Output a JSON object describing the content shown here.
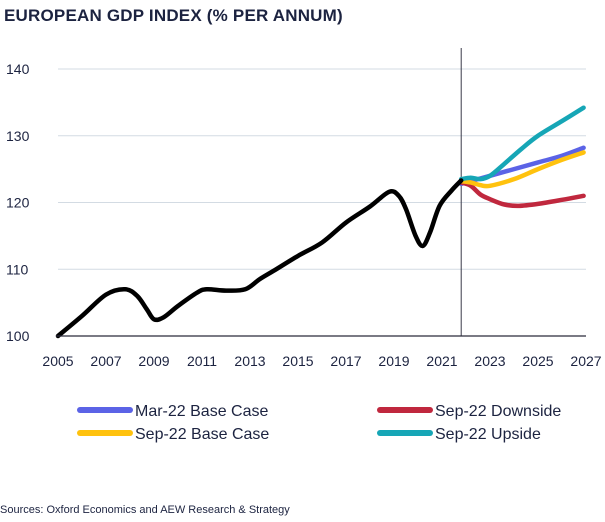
{
  "chart_data": {
    "type": "line",
    "title": "EUROPEAN GDP INDEX (% PER ANNUM)",
    "xlabel": "",
    "ylabel": "",
    "xlim": [
      2005,
      2027
    ],
    "ylim": [
      100,
      140
    ],
    "x_ticks": [
      "2005",
      "2007",
      "2009",
      "2011",
      "2013",
      "2015",
      "2017",
      "2019",
      "2021",
      "2023",
      "2025",
      "2027"
    ],
    "y_ticks": [
      "100",
      "110",
      "120",
      "130",
      "140"
    ],
    "grid": "horizontal",
    "forecast_divider_x": 2021.8,
    "legend_placement": "bottom",
    "history": {
      "name": "",
      "color": "#000000",
      "points": [
        [
          2005,
          100
        ],
        [
          2006,
          103
        ],
        [
          2007,
          106.2
        ],
        [
          2007.8,
          107
        ],
        [
          2008.3,
          106
        ],
        [
          2008.7,
          104
        ],
        [
          2009,
          102.5
        ],
        [
          2009.4,
          102.8
        ],
        [
          2010,
          104.5
        ],
        [
          2010.8,
          106.5
        ],
        [
          2011.2,
          107
        ],
        [
          2012,
          106.8
        ],
        [
          2012.8,
          107
        ],
        [
          2013.4,
          108.5
        ],
        [
          2014,
          109.8
        ],
        [
          2015,
          112
        ],
        [
          2016,
          114
        ],
        [
          2017,
          117
        ],
        [
          2018,
          119.4
        ],
        [
          2018.8,
          121.6
        ],
        [
          2019.2,
          121
        ],
        [
          2019.5,
          119
        ],
        [
          2019.9,
          115
        ],
        [
          2020.2,
          113.5
        ],
        [
          2020.5,
          115.5
        ],
        [
          2020.9,
          119.5
        ],
        [
          2021.4,
          121.8
        ],
        [
          2021.8,
          123.3
        ]
      ]
    },
    "series": [
      {
        "name": "Mar-22 Base Case",
        "color": "#5b63e6",
        "points": [
          [
            2021.8,
            122.8
          ],
          [
            2022.5,
            123.5
          ],
          [
            2023,
            124
          ],
          [
            2024,
            125
          ],
          [
            2025,
            126
          ],
          [
            2026,
            127
          ],
          [
            2026.9,
            128.2
          ]
        ]
      },
      {
        "name": "Sep-22 Downside",
        "color": "#c0283e",
        "points": [
          [
            2021.8,
            123
          ],
          [
            2022.2,
            122.5
          ],
          [
            2022.6,
            121.2
          ],
          [
            2023,
            120.5
          ],
          [
            2023.6,
            119.7
          ],
          [
            2024.2,
            119.5
          ],
          [
            2025,
            119.8
          ],
          [
            2026,
            120.4
          ],
          [
            2026.9,
            121
          ]
        ]
      },
      {
        "name": "Sep-22 Base Case",
        "color": "#ffc20e",
        "points": [
          [
            2021.8,
            123.2
          ],
          [
            2022.2,
            123
          ],
          [
            2022.6,
            122.6
          ],
          [
            2023,
            122.5
          ],
          [
            2024,
            123.5
          ],
          [
            2025,
            125
          ],
          [
            2026,
            126.4
          ],
          [
            2026.9,
            127.5
          ]
        ]
      },
      {
        "name": "Sep-22 Upside",
        "color": "#16a6b6",
        "points": [
          [
            2021.8,
            123.5
          ],
          [
            2022.2,
            123.7
          ],
          [
            2022.6,
            123.5
          ],
          [
            2023,
            124
          ],
          [
            2023.6,
            125.8
          ],
          [
            2024.3,
            128
          ],
          [
            2025,
            130
          ],
          [
            2026,
            132.2
          ],
          [
            2026.9,
            134.2
          ]
        ]
      }
    ],
    "legend": [
      {
        "name": "Mar-22 Base Case",
        "color": "#5b63e6"
      },
      {
        "name": "Sep-22 Downside",
        "color": "#c0283e"
      },
      {
        "name": "Sep-22 Base Case",
        "color": "#ffc20e"
      },
      {
        "name": "Sep-22 Upside",
        "color": "#16a6b6"
      }
    ],
    "source": "Sources: Oxford Economics and AEW Research & Strategy"
  }
}
